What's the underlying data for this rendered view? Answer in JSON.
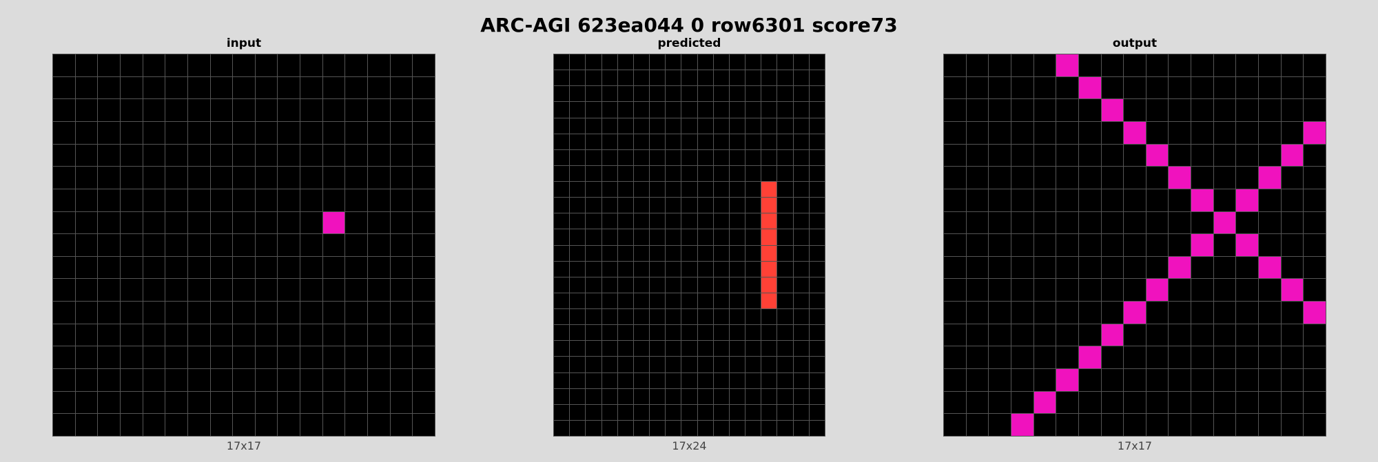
{
  "title": "ARC-AGI 623ea044 0 row6301 score73",
  "colors": {
    "0": "#000000",
    "2": "#ff4136",
    "6": "#f012be",
    "grid_line": "#555555",
    "background": "#dcdcdc"
  },
  "panels": [
    {
      "label": "input",
      "size_label": "17x17",
      "rows": 17,
      "cols": 17,
      "cells": [
        [
          7,
          12,
          6
        ]
      ]
    },
    {
      "label": "predicted",
      "size_label": "17x24",
      "rows": 24,
      "cols": 17,
      "cells": [
        [
          8,
          13,
          2
        ],
        [
          9,
          13,
          2
        ],
        [
          10,
          13,
          2
        ],
        [
          11,
          13,
          2
        ],
        [
          12,
          13,
          2
        ],
        [
          13,
          13,
          2
        ],
        [
          14,
          13,
          2
        ],
        [
          15,
          13,
          2
        ]
      ]
    },
    {
      "label": "output",
      "size_label": "17x17",
      "rows": 17,
      "cols": 17,
      "cells": [
        [
          0,
          5,
          6
        ],
        [
          1,
          6,
          6
        ],
        [
          2,
          7,
          6
        ],
        [
          3,
          8,
          6
        ],
        [
          4,
          9,
          6
        ],
        [
          5,
          10,
          6
        ],
        [
          6,
          11,
          6
        ],
        [
          7,
          12,
          6
        ],
        [
          8,
          13,
          6
        ],
        [
          9,
          14,
          6
        ],
        [
          10,
          15,
          6
        ],
        [
          11,
          16,
          6
        ],
        [
          6,
          13,
          6
        ],
        [
          5,
          14,
          6
        ],
        [
          4,
          15,
          6
        ],
        [
          3,
          16,
          6
        ],
        [
          8,
          11,
          6
        ],
        [
          9,
          10,
          6
        ],
        [
          10,
          9,
          6
        ],
        [
          11,
          8,
          6
        ],
        [
          12,
          7,
          6
        ],
        [
          13,
          6,
          6
        ],
        [
          14,
          5,
          6
        ],
        [
          15,
          4,
          6
        ],
        [
          16,
          3,
          6
        ]
      ]
    }
  ]
}
